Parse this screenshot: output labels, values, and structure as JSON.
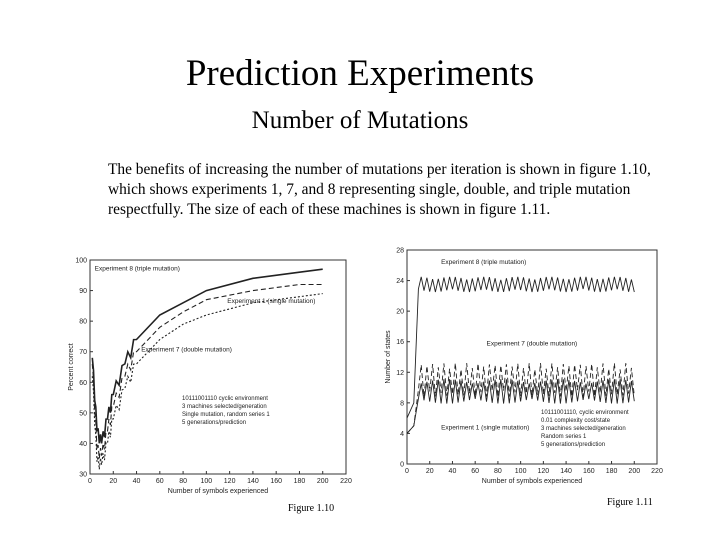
{
  "slide": {
    "title": "Prediction Experiments",
    "subtitle": "Number of Mutations",
    "body": "The benefits of increasing the number of mutations per iteration is shown in figure 1.10, which shows experiments 1, 7, and 8 representing single, double, and triple mutation respectfully. The size of each of these machines is shown in figure 1.11."
  },
  "figure_1_10": {
    "caption": "Figure 1.10",
    "legend": [
      "10111001110 cyclic environment",
      "3 machines selected/generation",
      "Single mutation, random series 1",
      "5 generations/prediction"
    ]
  },
  "figure_1_11": {
    "caption": "Figure 1.11",
    "legend": [
      "10111001110, cyclic environment",
      "0.01 complexity cost/state",
      "3 machines selected/generation",
      "Random series 1",
      "5 generations/prediction"
    ]
  },
  "chart_data": [
    {
      "type": "line",
      "ylabel": "Percent correct",
      "xlabel": "Number of symbols experienced",
      "xlim": [
        0,
        220
      ],
      "ylim": [
        30,
        100
      ],
      "xticks": [
        0,
        20,
        40,
        60,
        80,
        100,
        120,
        140,
        160,
        180,
        200,
        220
      ],
      "yticks": [
        30,
        40,
        50,
        60,
        70,
        80,
        90,
        100
      ],
      "series": [
        {
          "name": "Experiment 8 (triple mutation)",
          "style": "solid",
          "x": [
            2,
            6,
            10,
            15,
            20,
            30,
            40,
            60,
            80,
            100,
            140,
            180,
            200
          ],
          "y": [
            68,
            44,
            40,
            48,
            56,
            66,
            74,
            82,
            86,
            90,
            94,
            96,
            97
          ]
        },
        {
          "name": "Experiment 1 (single mutation)",
          "style": "dashed",
          "x": [
            2,
            6,
            10,
            15,
            20,
            30,
            40,
            60,
            80,
            100,
            140,
            180,
            200
          ],
          "y": [
            66,
            38,
            36,
            44,
            52,
            62,
            70,
            78,
            83,
            87,
            90,
            92,
            92
          ]
        },
        {
          "name": "Experiment 7 (double mutation)",
          "style": "dotted",
          "x": [
            2,
            6,
            10,
            15,
            20,
            30,
            40,
            60,
            80,
            100,
            140,
            180,
            200
          ],
          "y": [
            62,
            34,
            33,
            40,
            48,
            58,
            66,
            74,
            79,
            82,
            86,
            88,
            89
          ]
        }
      ]
    },
    {
      "type": "line",
      "ylabel": "Number of states",
      "xlabel": "Number of symbols experienced",
      "xlim": [
        0,
        220
      ],
      "ylim": [
        0,
        28
      ],
      "xticks": [
        0,
        20,
        40,
        60,
        80,
        100,
        120,
        140,
        160,
        180,
        200,
        220
      ],
      "yticks": [
        0,
        4,
        8,
        12,
        16,
        20,
        24,
        28
      ],
      "series": [
        {
          "name": "Experiment 8 (triple mutation)",
          "style": "solid",
          "center": 23.5,
          "amp": 1.0,
          "from_x": 10
        },
        {
          "name": "Experiment 7 (double mutation)",
          "style": "dashed",
          "center": 11.0,
          "amp": 2.2,
          "from_x": 10
        },
        {
          "name": "Experiment 1 (single mutation)",
          "style": "solid",
          "center": 9.5,
          "amp": 1.6,
          "from_x": 10
        }
      ]
    }
  ]
}
